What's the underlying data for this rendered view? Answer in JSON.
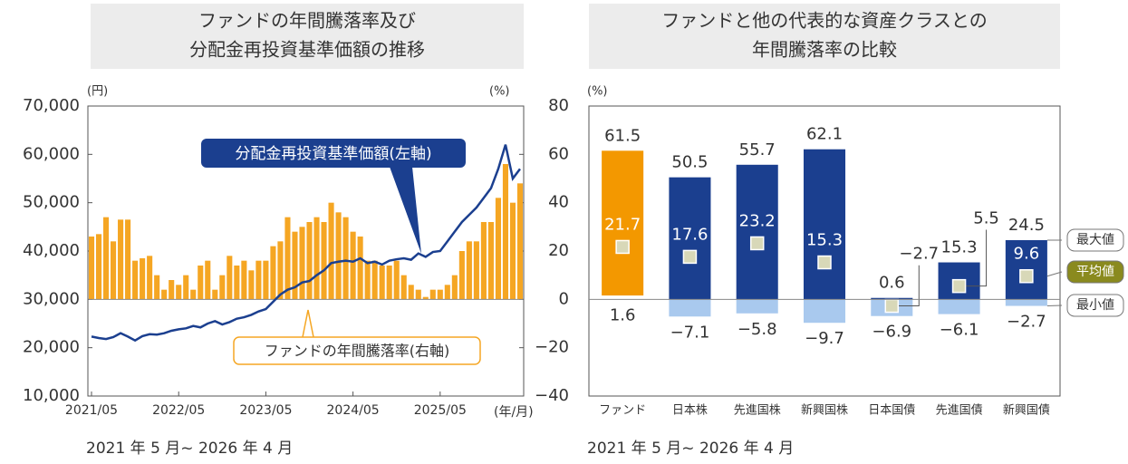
{
  "chart_data": [
    {
      "type": "combo",
      "title": [
        "ファンドの年間騰落率及び",
        "分配金再投資基準価額の推移"
      ],
      "period": "2021 年 5 月~ 2026 年 4 月",
      "y_label": "(円)",
      "y2_label": "(%)",
      "x_label": "(年/月)",
      "categories": [
        "2021/05",
        null,
        null,
        null,
        null,
        null,
        null,
        null,
        null,
        null,
        null,
        null,
        "2022/05",
        null,
        null,
        null,
        null,
        null,
        null,
        null,
        null,
        null,
        null,
        null,
        "2023/05",
        null,
        null,
        null,
        null,
        null,
        null,
        null,
        null,
        null,
        null,
        null,
        "2024/05",
        null,
        null,
        null,
        null,
        null,
        null,
        null,
        null,
        null,
        null,
        null,
        "2025/05",
        null,
        null,
        null,
        null,
        null,
        null,
        null,
        null,
        null,
        null,
        null
      ],
      "ylim": [
        10000,
        70000
      ],
      "yticks": [
        {
          "value": 10000,
          "label": "10,000"
        },
        {
          "value": 20000,
          "label": "20,000"
        },
        {
          "value": 30000,
          "label": "30,000"
        },
        {
          "value": 40000,
          "label": "40,000"
        },
        {
          "value": 50000,
          "label": "50,000"
        },
        {
          "value": 60000,
          "label": "60,000"
        },
        {
          "value": 70000,
          "label": "70,000"
        }
      ],
      "y2lim": [
        -40,
        80
      ],
      "y2ticks": [
        {
          "value": -40,
          "label": "−40"
        },
        {
          "value": -20,
          "label": "−20"
        },
        0,
        20,
        40,
        60,
        80
      ],
      "series": [
        {
          "name": "分配金再投資基準価額(左軸)",
          "type": "line",
          "color": "#1b3f8f",
          "values": [
            22300,
            22000,
            21800,
            22200,
            23000,
            22300,
            21500,
            22400,
            22800,
            22700,
            23000,
            23500,
            23800,
            24000,
            24500,
            24200,
            25000,
            25500,
            24800,
            25300,
            26000,
            26300,
            26800,
            27500,
            28000,
            29500,
            31000,
            32000,
            32500,
            33500,
            33800,
            35000,
            36000,
            37500,
            37800,
            38000,
            37800,
            38500,
            37500,
            37800,
            37200,
            38000,
            38300,
            38500,
            38200,
            39500,
            38800,
            39800,
            40000,
            42000,
            44000,
            46000,
            47500,
            49000,
            51000,
            53000,
            57000,
            62000,
            55000,
            57000
          ]
        },
        {
          "name": "ファンドの年間騰落率(右軸)",
          "type": "bar",
          "axis": "y2",
          "color": "#f5a623",
          "values": [
            26,
            27,
            34,
            24,
            33,
            33,
            16,
            17,
            18,
            10,
            4,
            8,
            6,
            10,
            4,
            14,
            16,
            4,
            10,
            18,
            14,
            16,
            12,
            16,
            16,
            22,
            24,
            34,
            28,
            30,
            32,
            34,
            32,
            40,
            36,
            34,
            28,
            26,
            16,
            16,
            14,
            14,
            16,
            10,
            6,
            4,
            1,
            4,
            4,
            6,
            10,
            20,
            24,
            24,
            32,
            32,
            42,
            56,
            40,
            48
          ]
        }
      ]
    },
    {
      "type": "range",
      "title": [
        "ファンドと他の代表的な資産クラスとの",
        "年間騰落率の比較"
      ],
      "period": "2021 年 5 月~ 2026 年 4 月",
      "y_label": "(%)",
      "categories": [
        "ファンド",
        "日本株",
        "先進国株",
        "新興国株",
        "日本国債",
        "先進国債",
        "新興国債"
      ],
      "ylim": [
        -40,
        80
      ],
      "highlight_color": "#f39800",
      "series": [
        {
          "name": "最大値",
          "color": "#1b3f8f",
          "values": [
            61.5,
            50.5,
            55.7,
            62.1,
            0.6,
            15.3,
            24.5
          ],
          "value_labels": [
            "61.5",
            "50.5",
            "55.7",
            "62.1",
            "0.6",
            "15.3",
            "24.5"
          ]
        },
        {
          "name": "平均値",
          "color": "#d8d8b8",
          "values": [
            21.7,
            17.6,
            23.2,
            15.3,
            -2.7,
            5.5,
            9.6
          ],
          "value_labels": [
            "21.7",
            "17.6",
            "23.2",
            "15.3",
            "−2.7",
            "5.5",
            "9.6"
          ]
        },
        {
          "name": "最小値",
          "color": "#a9c9ee",
          "values": [
            1.6,
            -7.1,
            -5.8,
            -9.7,
            -6.9,
            -6.1,
            -2.7
          ],
          "value_labels": [
            "1.6",
            "−7.1",
            "−5.8",
            "−9.7",
            "−6.9",
            "−6.1",
            "−2.7"
          ]
        }
      ]
    }
  ]
}
